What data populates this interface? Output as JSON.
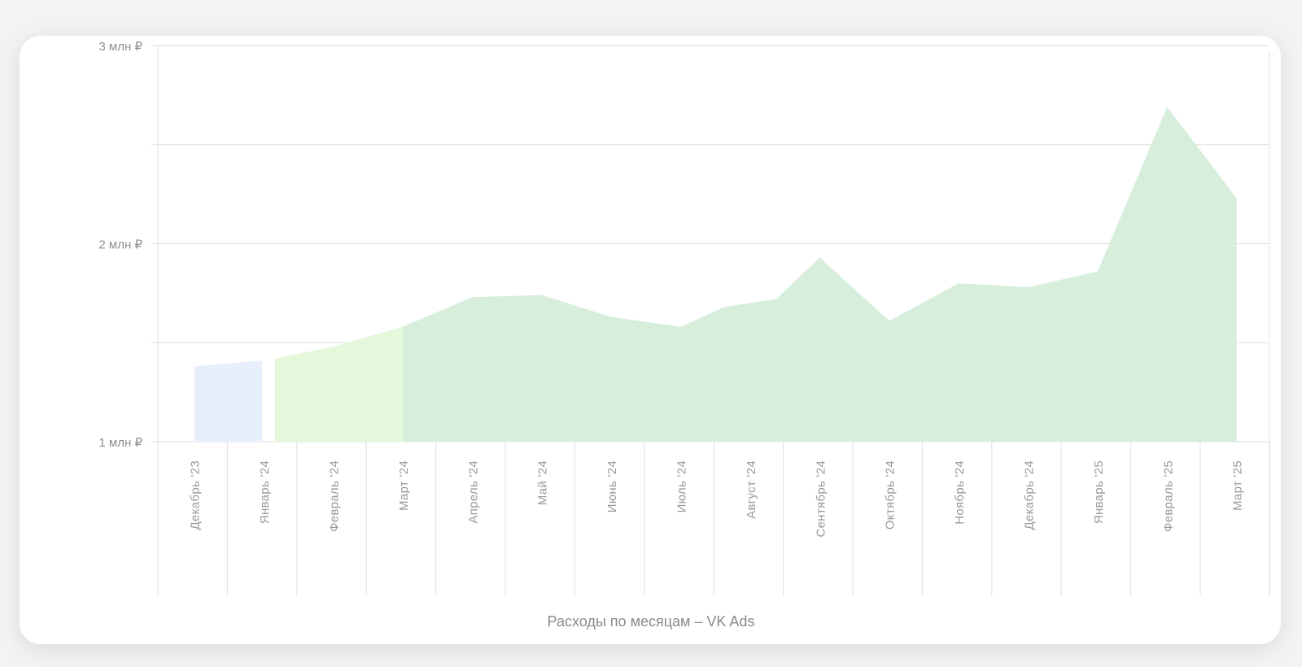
{
  "chart_data": {
    "type": "area",
    "title": "Расходы по месяцам – VK Ads",
    "xlabel": "",
    "ylabel": "",
    "y_unit": "₽",
    "ylim": [
      1000000,
      3000000
    ],
    "y_ticks": [
      {
        "value": 3000000,
        "label": "3 млн ₽"
      },
      {
        "value": 2000000,
        "label": "2 млн ₽"
      },
      {
        "value": 1000000,
        "label": "1 млн ₽"
      }
    ],
    "y_gridlines": [
      1000000,
      1500000,
      2000000,
      2500000,
      3000000
    ],
    "categories": [
      "Декабрь '23",
      "Январь '24",
      "Февраль '24",
      "Март '24",
      "Апрель '24",
      "Май '24",
      "Июнь '24",
      "Июль '24",
      "Август '24",
      "Сентябрь '24",
      "Октябрь '24",
      "Ноябрь '24",
      "Декабрь '24",
      "Январь '25",
      "Февраль '25",
      "Март '25"
    ],
    "grid": true,
    "legend": "none",
    "series": [
      {
        "color": "#e8effc",
        "points": [
          {
            "x": "Декабрь '23",
            "y": 1380000
          },
          {
            "x": "Январь '24",
            "y": 1410000
          }
        ]
      },
      {
        "color": "#e6f8dc",
        "points": [
          {
            "x": "Январь '24",
            "y": 1420000
          },
          {
            "x": "Февраль '24",
            "y": 1480000
          },
          {
            "x": "Март '24",
            "y": 1580000
          }
        ]
      },
      {
        "color": "#d7eedd",
        "points": [
          {
            "x": "Март '24",
            "y": 1580000
          },
          {
            "x": "Апрель '24",
            "y": 1730000
          },
          {
            "x": "Май '24",
            "y": 1740000
          },
          {
            "x": "Июнь '24",
            "y": 1630000
          },
          {
            "x": "Июль '24",
            "y": 1580000
          },
          {
            "x": "Август '24",
            "y": 1680000
          },
          {
            "x": "Август '24",
            "y": 1720000
          },
          {
            "x": "Сентябрь '24",
            "y": 1930000
          },
          {
            "x": "Октябрь '24",
            "y": 1610000
          },
          {
            "x": "Ноябрь '24",
            "y": 1800000
          },
          {
            "x": "Декабрь '24",
            "y": 1780000
          },
          {
            "x": "Январь '25",
            "y": 1860000
          },
          {
            "x": "Февраль '25",
            "y": 2690000
          },
          {
            "x": "Март '25",
            "y": 2230000
          }
        ]
      }
    ]
  }
}
